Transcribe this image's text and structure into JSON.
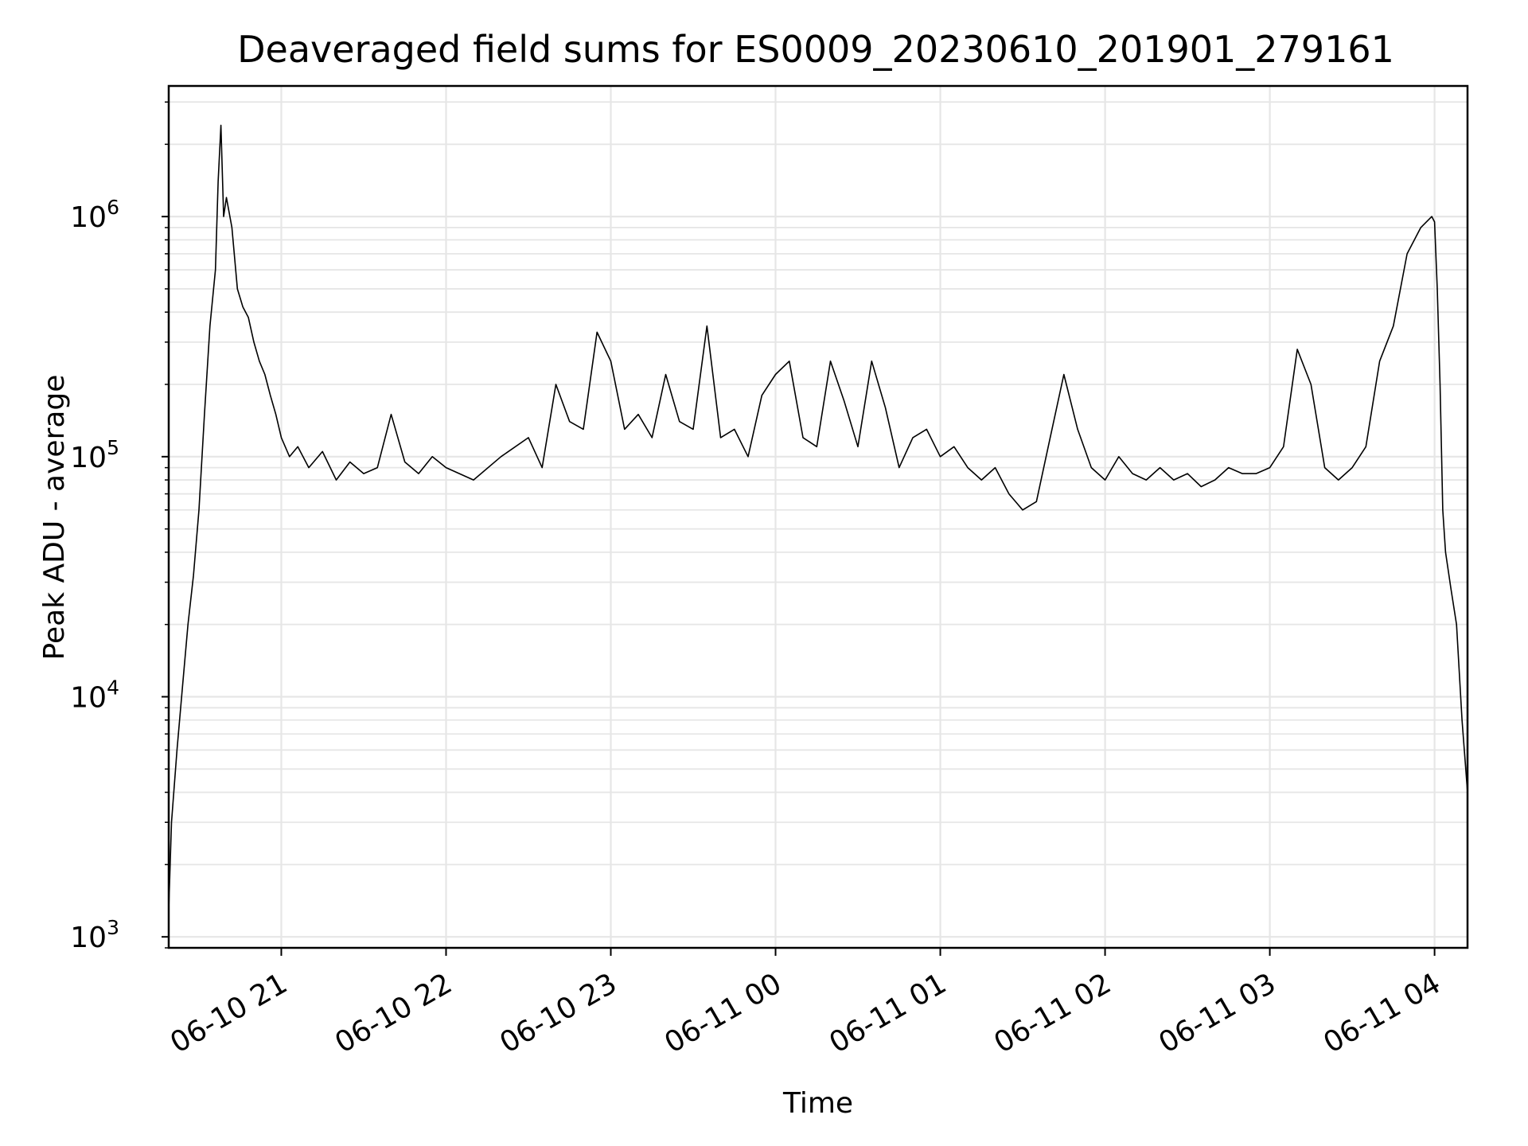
{
  "chart_data": {
    "type": "line",
    "title": "Deaveraged field sums for ES0009_20230610_201901_279161",
    "xlabel": "Time",
    "ylabel": "Peak ADU - average",
    "y_scale": "log",
    "ylim": [
      900,
      3500000
    ],
    "xlim": [
      "06-10 20:19",
      "06-11 04:12"
    ],
    "grid": true,
    "line_color": "#000000",
    "x_ticks": [
      {
        "label": "06-10 21",
        "value": "06-10 21:00"
      },
      {
        "label": "06-10 22",
        "value": "06-10 22:00"
      },
      {
        "label": "06-10 23",
        "value": "06-10 23:00"
      },
      {
        "label": "06-11 00",
        "value": "06-11 00:00"
      },
      {
        "label": "06-11 01",
        "value": "06-11 01:00"
      },
      {
        "label": "06-11 02",
        "value": "06-11 02:00"
      },
      {
        "label": "06-11 03",
        "value": "06-11 03:00"
      },
      {
        "label": "06-11 04",
        "value": "06-11 04:00"
      }
    ],
    "y_ticks": [
      {
        "base": "10",
        "exp": "3",
        "value": 1000
      },
      {
        "base": "10",
        "exp": "4",
        "value": 10000
      },
      {
        "base": "10",
        "exp": "5",
        "value": 100000
      },
      {
        "base": "10",
        "exp": "6",
        "value": 1000000
      }
    ],
    "series": [
      {
        "points": [
          [
            "06-10 20:19",
            1300
          ],
          [
            "06-10 20:20",
            3000
          ],
          [
            "06-10 20:22",
            6000
          ],
          [
            "06-10 20:24",
            11000
          ],
          [
            "06-10 20:26",
            20000
          ],
          [
            "06-10 20:28",
            32000
          ],
          [
            "06-10 20:30",
            60000
          ],
          [
            "06-10 20:32",
            150000
          ],
          [
            "06-10 20:34",
            350000
          ],
          [
            "06-10 20:36",
            600000
          ],
          [
            "06-10 20:37",
            1400000
          ],
          [
            "06-10 20:38",
            2400000
          ],
          [
            "06-10 20:39",
            1000000
          ],
          [
            "06-10 20:40",
            1200000
          ],
          [
            "06-10 20:42",
            900000
          ],
          [
            "06-10 20:44",
            500000
          ],
          [
            "06-10 20:46",
            420000
          ],
          [
            "06-10 20:48",
            380000
          ],
          [
            "06-10 20:50",
            300000
          ],
          [
            "06-10 20:52",
            250000
          ],
          [
            "06-10 20:54",
            220000
          ],
          [
            "06-10 20:56",
            180000
          ],
          [
            "06-10 20:58",
            150000
          ],
          [
            "06-10 21:00",
            120000
          ],
          [
            "06-10 21:03",
            100000
          ],
          [
            "06-10 21:06",
            110000
          ],
          [
            "06-10 21:10",
            90000
          ],
          [
            "06-10 21:15",
            105000
          ],
          [
            "06-10 21:20",
            80000
          ],
          [
            "06-10 21:25",
            95000
          ],
          [
            "06-10 21:30",
            85000
          ],
          [
            "06-10 21:35",
            90000
          ],
          [
            "06-10 21:40",
            150000
          ],
          [
            "06-10 21:45",
            95000
          ],
          [
            "06-10 21:50",
            85000
          ],
          [
            "06-10 21:55",
            100000
          ],
          [
            "06-10 22:00",
            90000
          ],
          [
            "06-10 22:10",
            80000
          ],
          [
            "06-10 22:20",
            100000
          ],
          [
            "06-10 22:30",
            120000
          ],
          [
            "06-10 22:35",
            90000
          ],
          [
            "06-10 22:40",
            200000
          ],
          [
            "06-10 22:45",
            140000
          ],
          [
            "06-10 22:50",
            130000
          ],
          [
            "06-10 22:55",
            330000
          ],
          [
            "06-10 23:00",
            250000
          ],
          [
            "06-10 23:05",
            130000
          ],
          [
            "06-10 23:10",
            150000
          ],
          [
            "06-10 23:15",
            120000
          ],
          [
            "06-10 23:20",
            220000
          ],
          [
            "06-10 23:25",
            140000
          ],
          [
            "06-10 23:30",
            130000
          ],
          [
            "06-10 23:35",
            350000
          ],
          [
            "06-10 23:40",
            120000
          ],
          [
            "06-10 23:45",
            130000
          ],
          [
            "06-10 23:50",
            100000
          ],
          [
            "06-10 23:55",
            180000
          ],
          [
            "06-11 00:00",
            220000
          ],
          [
            "06-11 00:05",
            250000
          ],
          [
            "06-11 00:10",
            120000
          ],
          [
            "06-11 00:15",
            110000
          ],
          [
            "06-11 00:20",
            250000
          ],
          [
            "06-11 00:25",
            170000
          ],
          [
            "06-11 00:30",
            110000
          ],
          [
            "06-11 00:35",
            250000
          ],
          [
            "06-11 00:40",
            160000
          ],
          [
            "06-11 00:45",
            90000
          ],
          [
            "06-11 00:50",
            120000
          ],
          [
            "06-11 00:55",
            130000
          ],
          [
            "06-11 01:00",
            100000
          ],
          [
            "06-11 01:05",
            110000
          ],
          [
            "06-11 01:10",
            90000
          ],
          [
            "06-11 01:15",
            80000
          ],
          [
            "06-11 01:20",
            90000
          ],
          [
            "06-11 01:25",
            70000
          ],
          [
            "06-11 01:30",
            60000
          ],
          [
            "06-11 01:35",
            65000
          ],
          [
            "06-11 01:40",
            120000
          ],
          [
            "06-11 01:45",
            220000
          ],
          [
            "06-11 01:50",
            130000
          ],
          [
            "06-11 01:55",
            90000
          ],
          [
            "06-11 02:00",
            80000
          ],
          [
            "06-11 02:05",
            100000
          ],
          [
            "06-11 02:10",
            85000
          ],
          [
            "06-11 02:15",
            80000
          ],
          [
            "06-11 02:20",
            90000
          ],
          [
            "06-11 02:25",
            80000
          ],
          [
            "06-11 02:30",
            85000
          ],
          [
            "06-11 02:35",
            75000
          ],
          [
            "06-11 02:40",
            80000
          ],
          [
            "06-11 02:45",
            90000
          ],
          [
            "06-11 02:50",
            85000
          ],
          [
            "06-11 02:55",
            85000
          ],
          [
            "06-11 03:00",
            90000
          ],
          [
            "06-11 03:05",
            110000
          ],
          [
            "06-11 03:10",
            280000
          ],
          [
            "06-11 03:15",
            200000
          ],
          [
            "06-11 03:20",
            90000
          ],
          [
            "06-11 03:25",
            80000
          ],
          [
            "06-11 03:30",
            90000
          ],
          [
            "06-11 03:35",
            110000
          ],
          [
            "06-11 03:40",
            250000
          ],
          [
            "06-11 03:45",
            350000
          ],
          [
            "06-11 03:50",
            700000
          ],
          [
            "06-11 03:55",
            900000
          ],
          [
            "06-11 03:59",
            1000000
          ],
          [
            "06-11 04:00",
            950000
          ],
          [
            "06-11 04:01",
            500000
          ],
          [
            "06-11 04:02",
            200000
          ],
          [
            "06-11 04:03",
            60000
          ],
          [
            "06-11 04:04",
            40000
          ],
          [
            "06-11 04:06",
            28000
          ],
          [
            "06-11 04:08",
            20000
          ],
          [
            "06-11 04:10",
            8000
          ],
          [
            "06-11 04:12",
            4000
          ]
        ]
      }
    ]
  }
}
